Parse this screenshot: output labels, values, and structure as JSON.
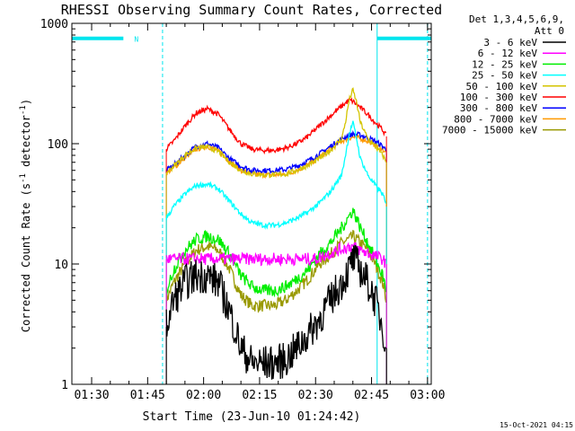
{
  "chart_data": {
    "type": "line",
    "title": "RHESSI Observing Summary Count Rates, Corrected",
    "xlabel": "Start Time (23-Jun-10 01:24:42)",
    "ylabel_main": "Corrected Count Rate (s",
    "ylabel_sup1": "-1",
    "ylabel_mid": " detector",
    "ylabel_sup2": "-1",
    "ylabel_end": ")",
    "yscale": "log",
    "ylim": [
      1,
      1000
    ],
    "xlim_minutes": [
      84.7,
      181
    ],
    "x_ticks": [
      {
        "t": 90,
        "label": "01:30"
      },
      {
        "t": 105,
        "label": "01:45"
      },
      {
        "t": 120,
        "label": "02:00"
      },
      {
        "t": 135,
        "label": "02:15"
      },
      {
        "t": 150,
        "label": "02:30"
      },
      {
        "t": 165,
        "label": "02:45"
      },
      {
        "t": 180,
        "label": "03:00"
      }
    ],
    "y_ticks": [
      {
        "v": 1,
        "label": "1"
      },
      {
        "v": 10,
        "label": "10"
      },
      {
        "v": 100,
        "label": "100"
      },
      {
        "v": 1000,
        "label": "1000"
      }
    ],
    "legend": {
      "header1": "Det 1,3,4,5,6,9,",
      "header2": "Att 0",
      "placement": "right"
    },
    "series": [
      {
        "name": "3 - 6 keV",
        "color": "#000000",
        "x": [
          110,
          112,
          115,
          118,
          121,
          124,
          127,
          130,
          133,
          136,
          139,
          142,
          145,
          148,
          151,
          154,
          157,
          159,
          160,
          161,
          162,
          164,
          166,
          168,
          169
        ],
        "values": [
          3,
          5,
          7,
          8,
          8,
          7,
          4,
          2,
          1.5,
          1.5,
          1.5,
          1.6,
          2,
          2.6,
          3.5,
          5,
          7,
          9,
          11,
          10,
          9,
          7,
          5,
          3,
          2
        ]
      },
      {
        "name": "6 - 12 keV",
        "color": "#ff00ff",
        "x": [
          110,
          115,
          120,
          125,
          130,
          135,
          140,
          145,
          150,
          153,
          156,
          159,
          160,
          162,
          165,
          168,
          169
        ],
        "values": [
          11,
          11,
          11,
          11,
          11,
          11,
          11,
          11,
          11,
          12,
          13,
          14,
          14,
          13,
          12,
          11,
          10
        ]
      },
      {
        "name": "12 - 25 keV",
        "color": "#00ee00",
        "x": [
          110,
          112,
          115,
          118,
          121,
          124,
          127,
          130,
          133,
          136,
          139,
          142,
          145,
          148,
          151,
          154,
          157,
          159,
          160,
          161,
          162,
          164,
          166,
          168,
          169
        ],
        "values": [
          6,
          9,
          13,
          16,
          17,
          16,
          12,
          8,
          6.5,
          6,
          6,
          6.5,
          7.5,
          9,
          12,
          15,
          20,
          25,
          28,
          24,
          20,
          15,
          11,
          8,
          6
        ]
      },
      {
        "name": "25 - 50 keV",
        "color": "#00ffff",
        "x": [
          110,
          112,
          115,
          118,
          121,
          124,
          127,
          130,
          133,
          136,
          139,
          142,
          145,
          148,
          151,
          154,
          157,
          158,
          159,
          160,
          161,
          162,
          164,
          166,
          168,
          169
        ],
        "values": [
          24,
          30,
          38,
          45,
          46,
          42,
          33,
          26,
          22,
          21,
          21,
          22,
          24,
          27,
          32,
          40,
          55,
          80,
          120,
          150,
          110,
          75,
          55,
          45,
          38,
          30
        ]
      },
      {
        "name": "50 - 100 keV",
        "color": "#d4c400",
        "x": [
          110,
          112,
          115,
          118,
          121,
          124,
          127,
          130,
          133,
          136,
          139,
          142,
          145,
          148,
          151,
          154,
          157,
          158,
          159,
          160,
          161,
          162,
          164,
          166,
          168,
          169
        ],
        "values": [
          57,
          65,
          80,
          92,
          94,
          86,
          70,
          60,
          56,
          55,
          55,
          56,
          60,
          66,
          75,
          88,
          110,
          150,
          230,
          280,
          220,
          150,
          110,
          95,
          80,
          70
        ]
      },
      {
        "name": "100 - 300 keV",
        "color": "#ff0000",
        "x": [
          110,
          112,
          115,
          118,
          121,
          124,
          127,
          130,
          133,
          136,
          139,
          142,
          145,
          148,
          151,
          154,
          157,
          159,
          160,
          162,
          164,
          166,
          168,
          169
        ],
        "values": [
          90,
          105,
          140,
          180,
          195,
          175,
          130,
          100,
          90,
          88,
          88,
          92,
          100,
          115,
          140,
          170,
          205,
          230,
          225,
          200,
          175,
          150,
          130,
          115
        ]
      },
      {
        "name": "300 - 800 keV",
        "color": "#0000ff",
        "x": [
          110,
          112,
          115,
          118,
          121,
          124,
          127,
          130,
          133,
          136,
          139,
          142,
          145,
          148,
          151,
          154,
          157,
          159,
          160,
          162,
          164,
          166,
          168,
          169
        ],
        "values": [
          60,
          66,
          80,
          95,
          100,
          92,
          75,
          65,
          60,
          60,
          60,
          61,
          65,
          72,
          82,
          95,
          110,
          118,
          120,
          118,
          112,
          105,
          95,
          88
        ]
      },
      {
        "name": "800 - 7000 keV",
        "color": "#ff9900",
        "x": [
          110,
          112,
          115,
          118,
          121,
          124,
          127,
          130,
          133,
          136,
          139,
          142,
          145,
          148,
          151,
          154,
          157,
          159,
          160,
          162,
          164,
          166,
          168,
          169
        ],
        "values": [
          57,
          63,
          76,
          90,
          95,
          87,
          71,
          60,
          56,
          55,
          55,
          56,
          60,
          67,
          77,
          90,
          105,
          112,
          113,
          111,
          105,
          98,
          90,
          83
        ]
      },
      {
        "name": "7000 - 15000 keV",
        "color": "#999900",
        "x": [
          110,
          112,
          115,
          118,
          121,
          124,
          127,
          130,
          133,
          136,
          139,
          142,
          145,
          148,
          151,
          154,
          157,
          159,
          160,
          161,
          162,
          164,
          166,
          168,
          169
        ],
        "values": [
          5,
          7,
          10,
          13,
          14,
          13,
          9,
          5.5,
          4.5,
          4.5,
          4.5,
          5,
          6,
          7.5,
          10,
          12,
          15,
          16,
          17,
          16,
          15,
          13,
          10,
          7,
          5
        ]
      }
    ],
    "cyan_bars": [
      {
        "x0": 84.7,
        "x1": 98.5,
        "y": 750
      },
      {
        "x0": 166.5,
        "x1": 181,
        "y": 750
      }
    ],
    "bar_marker": "N",
    "dashed_lines_t": [
      109,
      180
    ],
    "solid_line_t": 166.5
  },
  "footer": {
    "timestamp": "15-Oct-2021 04:15"
  }
}
